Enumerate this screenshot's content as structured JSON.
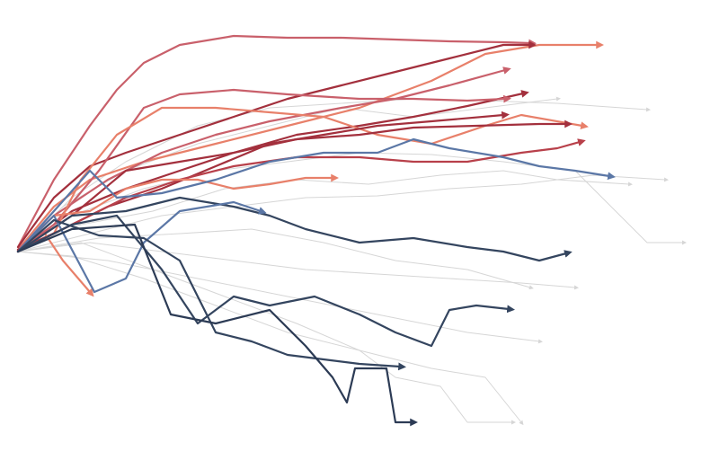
{
  "chart_data": {
    "type": "line",
    "xlim": [
      0,
      780
    ],
    "ylim": [
      -240,
      280
    ],
    "grid": false,
    "arrow_ends": true,
    "series": [
      {
        "color": "#d6d6d6",
        "x": [
          0,
          60,
          120,
          200,
          280,
          360,
          440,
          520,
          600,
          700
        ],
        "values": [
          0,
          60,
          100,
          140,
          160,
          165,
          170,
          168,
          165,
          158
        ]
      },
      {
        "color": "#d6d6d6",
        "x": [
          0,
          80,
          160,
          240,
          320,
          400,
          480,
          560,
          640,
          720
        ],
        "values": [
          0,
          20,
          40,
          50,
          60,
          62,
          70,
          75,
          85,
          80
        ]
      },
      {
        "color": "#d6d6d6",
        "x": [
          0,
          80,
          160,
          240,
          320,
          400,
          480,
          560,
          620
        ],
        "values": [
          0,
          10,
          0,
          -10,
          -20,
          -25,
          -30,
          -35,
          -40
        ]
      },
      {
        "color": "#d6d6d6",
        "x": [
          0,
          60,
          140,
          220,
          300,
          380,
          460,
          520,
          560
        ],
        "values": [
          0,
          -5,
          -30,
          -60,
          -90,
          -110,
          -130,
          -140,
          -190
        ]
      },
      {
        "color": "#d6d6d6",
        "x": [
          0,
          70,
          150,
          230,
          310,
          380,
          420,
          470,
          500,
          550
        ],
        "values": [
          0,
          10,
          -20,
          -50,
          -80,
          -110,
          -140,
          -150,
          -190,
          -190
        ]
      },
      {
        "color": "#d6d6d6",
        "x": [
          0,
          60,
          140,
          220,
          300,
          380,
          460,
          540,
          620,
          700,
          740
        ],
        "values": [
          0,
          40,
          70,
          90,
          100,
          110,
          108,
          100,
          90,
          10,
          10
        ]
      },
      {
        "color": "#d6d6d6",
        "x": [
          0,
          50,
          120,
          200,
          280,
          360,
          440,
          520,
          600
        ],
        "values": [
          0,
          50,
          90,
          120,
          140,
          160,
          150,
          160,
          170
        ]
      },
      {
        "color": "#d6d6d6",
        "x": [
          0,
          90,
          180,
          260,
          340,
          420,
          500,
          570
        ],
        "values": [
          0,
          15,
          20,
          25,
          10,
          -10,
          -20,
          -40
        ]
      },
      {
        "color": "#d6d6d6",
        "x": [
          0,
          100,
          200,
          300,
          400,
          500,
          580
        ],
        "values": [
          0,
          -10,
          -30,
          -50,
          -70,
          -90,
          -100
        ]
      },
      {
        "color": "#d6d6d6",
        "x": [
          0,
          70,
          150,
          230,
          310,
          390,
          470,
          540,
          600,
          680
        ],
        "values": [
          0,
          30,
          45,
          70,
          80,
          75,
          85,
          90,
          80,
          75
        ]
      },
      {
        "color": "#c9606b",
        "x": [
          0,
          40,
          80,
          110,
          140,
          180,
          240,
          300,
          360,
          420,
          480,
          540,
          570
        ],
        "values": [
          5,
          80,
          140,
          180,
          210,
          230,
          240,
          238,
          238,
          236,
          234,
          233,
          232
        ]
      },
      {
        "color": "#e8806a",
        "x": [
          0,
          40,
          80,
          140,
          220,
          300,
          380,
          460,
          520,
          580,
          645
        ],
        "values": [
          2,
          50,
          80,
          100,
          120,
          140,
          160,
          190,
          220,
          230,
          230
        ]
      },
      {
        "color": "#a3303d",
        "x": [
          0,
          40,
          80,
          120,
          180,
          240,
          300,
          360,
          420,
          480,
          540,
          570
        ],
        "values": [
          5,
          60,
          95,
          110,
          130,
          150,
          170,
          185,
          200,
          215,
          230,
          230
        ]
      },
      {
        "color": "#c9606b",
        "x": [
          0,
          40,
          100,
          160,
          220,
          280,
          360,
          420,
          480,
          542
        ],
        "values": [
          2,
          40,
          80,
          110,
          130,
          145,
          160,
          170,
          185,
          202
        ]
      },
      {
        "color": "#a3303d",
        "x": [
          0,
          60,
          120,
          180,
          240,
          310,
          380,
          440,
          500,
          562
        ],
        "values": [
          0,
          45,
          70,
          90,
          110,
          130,
          140,
          150,
          162,
          176
        ]
      },
      {
        "color": "#c9606b",
        "x": [
          0,
          40,
          90,
          140,
          180,
          240,
          300,
          380,
          440,
          500,
          542
        ],
        "values": [
          2,
          30,
          90,
          160,
          175,
          180,
          175,
          170,
          170,
          168,
          170
        ]
      },
      {
        "color": "#e8806a",
        "x": [
          0,
          40,
          70,
          110,
          160,
          220,
          280,
          340,
          400,
          460,
          520,
          560,
          628
        ],
        "values": [
          0,
          20,
          80,
          130,
          160,
          160,
          155,
          150,
          130,
          120,
          140,
          152,
          140
        ]
      },
      {
        "color": "#a3303d",
        "x": [
          0,
          60,
          120,
          180,
          240,
          310,
          380,
          440,
          510,
          580,
          610
        ],
        "values": [
          0,
          40,
          90,
          100,
          110,
          125,
          130,
          138,
          140,
          142,
          142
        ]
      },
      {
        "color": "#a3303d",
        "x": [
          0,
          50,
          100,
          160,
          220,
          280,
          340,
          400,
          460,
          540
        ],
        "values": [
          2,
          25,
          50,
          70,
          95,
          120,
          130,
          140,
          145,
          152
        ]
      },
      {
        "color": "#b8404a",
        "x": [
          0,
          60,
          120,
          180,
          240,
          310,
          380,
          440,
          500,
          560,
          600,
          625
        ],
        "values": [
          0,
          30,
          60,
          80,
          95,
          105,
          105,
          100,
          100,
          110,
          115,
          122
        ]
      },
      {
        "color": "#e8806a",
        "x": [
          0,
          40,
          80,
          120,
          160,
          200,
          240,
          280,
          320,
          350
        ],
        "values": [
          0,
          40,
          45,
          70,
          80,
          80,
          70,
          75,
          82,
          82
        ]
      },
      {
        "color": "#e8806a",
        "x": [
          0,
          30,
          50,
          80
        ],
        "values": [
          0,
          20,
          -10,
          -45
        ]
      },
      {
        "color": "#5b77a6",
        "x": [
          0,
          40,
          80,
          110,
          160,
          220,
          280,
          340,
          400,
          440,
          480,
          540,
          580,
          620,
          658
        ],
        "values": [
          0,
          45,
          90,
          60,
          65,
          80,
          100,
          110,
          110,
          125,
          115,
          105,
          95,
          90,
          84
        ]
      },
      {
        "color": "#34455f",
        "x": [
          0,
          60,
          120,
          180,
          240,
          280,
          320,
          380,
          440,
          500,
          540,
          580,
          610
        ],
        "values": [
          0,
          40,
          45,
          60,
          50,
          40,
          25,
          10,
          15,
          5,
          0,
          -10,
          -2
        ]
      },
      {
        "color": "#5b77a6",
        "x": [
          0,
          40,
          85,
          120,
          140,
          180,
          240,
          270
        ],
        "values": [
          0,
          40,
          -45,
          -30,
          10,
          45,
          55,
          45
        ]
      },
      {
        "color": "#34455f",
        "x": [
          0,
          60,
          110,
          160,
          200,
          240,
          280,
          330,
          380,
          420,
          460,
          480,
          510,
          546
        ],
        "values": [
          0,
          30,
          40,
          -20,
          -80,
          -50,
          -60,
          -50,
          -70,
          -90,
          -105,
          -65,
          -60,
          -64
        ]
      },
      {
        "color": "#34455f",
        "x": [
          0,
          40,
          90,
          140,
          180,
          220,
          260,
          300,
          340,
          380,
          425
        ],
        "values": [
          0,
          35,
          18,
          15,
          -10,
          -90,
          -100,
          -115,
          -120,
          -125,
          -128
        ]
      },
      {
        "color": "#2c3b55",
        "x": [
          0,
          60,
          130,
          170,
          220,
          280,
          320,
          350,
          366,
          375,
          410,
          420,
          438
        ],
        "values": [
          0,
          25,
          30,
          -70,
          -80,
          -65,
          -105,
          -140,
          -168,
          -130,
          -130,
          -190,
          -190
        ]
      }
    ]
  }
}
